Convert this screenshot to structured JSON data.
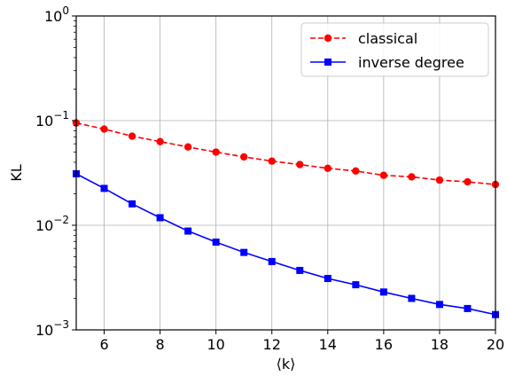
{
  "chart_data": {
    "type": "line",
    "title": "",
    "xlabel": "⟨k⟩",
    "ylabel": "KL",
    "xlim": [
      5,
      20
    ],
    "ylim": [
      0.001,
      1
    ],
    "yscale": "log",
    "grid": true,
    "legend_position": "upper-right",
    "x_ticks": [
      6,
      8,
      10,
      12,
      14,
      16,
      18,
      20
    ],
    "x_tick_labels": [
      "6",
      "8",
      "10",
      "12",
      "14",
      "16",
      "18",
      "20"
    ],
    "y_ticks": [
      {
        "value": 0.001,
        "base": "10",
        "exp": "−3"
      },
      {
        "value": 0.01,
        "base": "10",
        "exp": "−2"
      },
      {
        "value": 0.1,
        "base": "10",
        "exp": "−1"
      },
      {
        "value": 1,
        "base": "10",
        "exp": "0"
      }
    ],
    "x": [
      5,
      6,
      7,
      8,
      9,
      10,
      11,
      12,
      13,
      14,
      15,
      16,
      17,
      18,
      19,
      20
    ],
    "series": [
      {
        "name": "classical",
        "color": "#ff0000",
        "line_style": "dashed",
        "marker": "circle",
        "values": [
          0.095,
          0.083,
          0.071,
          0.063,
          0.056,
          0.05,
          0.045,
          0.041,
          0.038,
          0.035,
          0.033,
          0.03,
          0.029,
          0.027,
          0.026,
          0.0245
        ]
      },
      {
        "name": "inverse degree",
        "color": "#0000ff",
        "line_style": "solid",
        "marker": "square",
        "values": [
          0.031,
          0.0225,
          0.016,
          0.0118,
          0.0088,
          0.0069,
          0.0055,
          0.0045,
          0.0037,
          0.0031,
          0.0027,
          0.0023,
          0.002,
          0.00175,
          0.0016,
          0.0014
        ]
      }
    ]
  }
}
